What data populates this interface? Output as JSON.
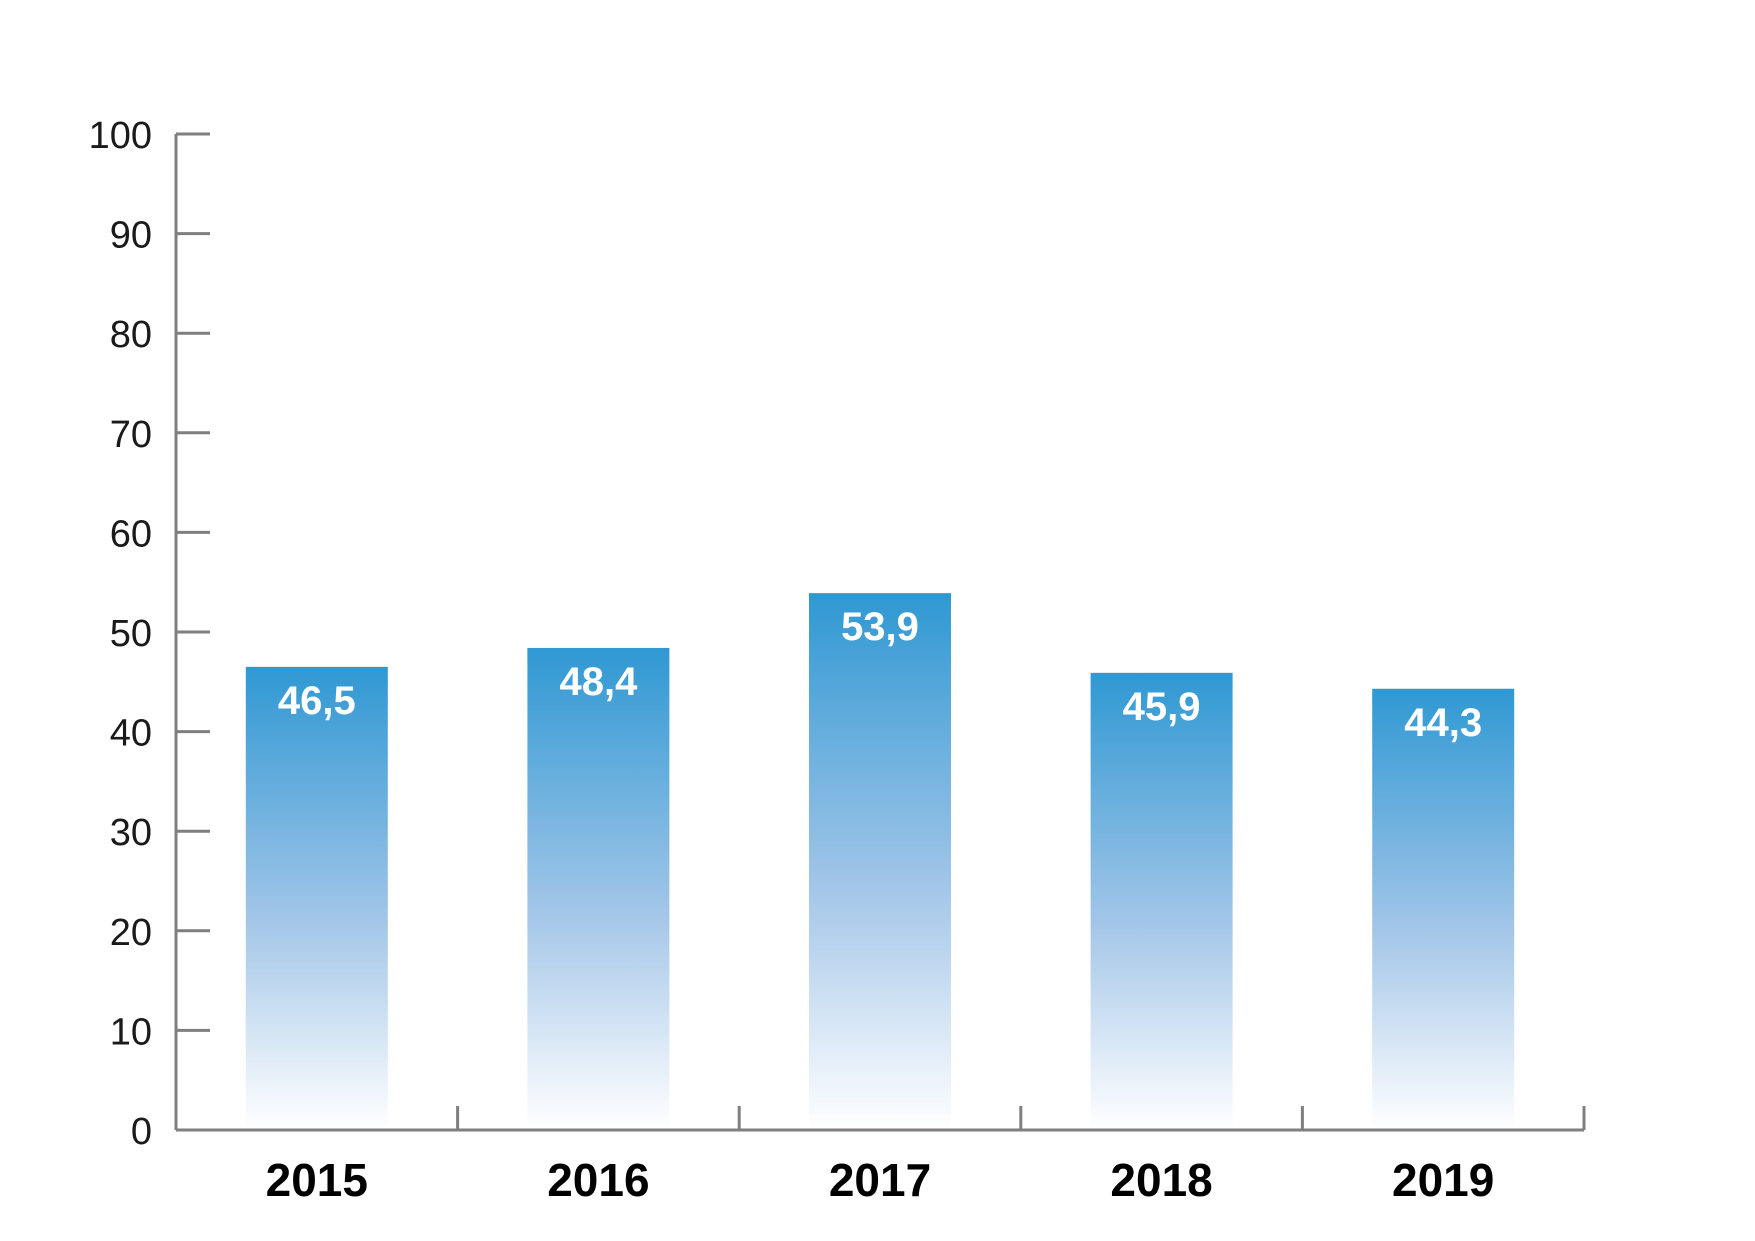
{
  "chart_data": {
    "type": "bar",
    "categories": [
      "2015",
      "2016",
      "2017",
      "2018",
      "2019"
    ],
    "values": [
      46.5,
      48.4,
      53.9,
      45.9,
      44.3
    ],
    "value_labels": [
      "46,5",
      "48,4",
      "53,9",
      "45,9",
      "44,3"
    ],
    "y_ticks": [
      "0",
      "10",
      "20",
      "30",
      "40",
      "50",
      "60",
      "70",
      "80",
      "90",
      "100"
    ],
    "ylim": [
      0,
      100
    ],
    "grid": false,
    "legend": "none",
    "title": "",
    "xlabel": "",
    "ylabel": ""
  },
  "colors": {
    "bar_top": "#2f98d3",
    "bar_bottom": "#ffffff",
    "axis": "#7f7f7f"
  }
}
